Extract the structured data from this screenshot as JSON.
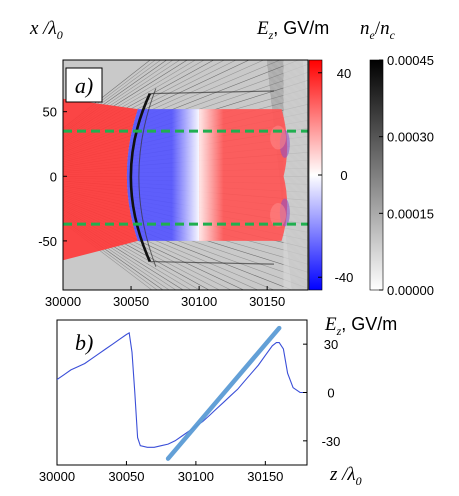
{
  "chart_data": [
    {
      "panel": "a)",
      "type": "heatmap",
      "ylabel_main": "x /λ",
      "ylabel_sub": "0",
      "x_ticks": [
        30000,
        30050,
        30100,
        30150
      ],
      "y_ticks": [
        50,
        0,
        -50
      ],
      "xlim": [
        30000,
        30180
      ],
      "ylim": [
        -88,
        90
      ],
      "field_colorbar": {
        "label_main": "E",
        "label_sub": "z",
        "label_unit": ", GV/m",
        "ticks": [
          "40",
          "0",
          "-40"
        ],
        "range": [
          -45,
          45
        ],
        "colors": [
          "#0000ff",
          "#ffffff",
          "#ff0000"
        ]
      },
      "density_colorbar": {
        "label_num": "n",
        "label_num_sub": "e",
        "label_den": "n",
        "label_den_sub": "c",
        "ticks": [
          "0.00045",
          "0.00030",
          "0.00015",
          "0.00000"
        ],
        "range": [
          0,
          0.00045
        ],
        "colors": [
          "#ffffff",
          "#000000"
        ]
      },
      "field_regions": [
        {
          "z_start": 30000,
          "z_end": 30055,
          "value": 35
        },
        {
          "z_start": 30055,
          "z_end": 30100,
          "value": -30
        },
        {
          "z_start": 30100,
          "z_end": 30165,
          "value": 30
        }
      ],
      "dashed_lines_x": [
        35,
        -37
      ],
      "dashed_color": "#1faf4f"
    },
    {
      "panel": "b)",
      "type": "line",
      "xlabel_main": "z /λ",
      "xlabel_sub": "0",
      "ylabel_main": "E",
      "ylabel_sub": "z",
      "ylabel_unit": ", GV/m",
      "x_ticks": [
        30000,
        30050,
        30100,
        30150
      ],
      "y_ticks": [
        30,
        0,
        -30
      ],
      "xlim": [
        30000,
        30180
      ],
      "ylim": [
        -45,
        45
      ],
      "series": [
        {
          "color": "#3b4fd8",
          "x": [
            30000,
            30005,
            30010,
            30015,
            30020,
            30025,
            30030,
            30035,
            30040,
            30045,
            30050,
            30052,
            30054,
            30056,
            30058,
            30060,
            30065,
            30070,
            30075,
            30080,
            30085,
            30090,
            30095,
            30100,
            30105,
            30110,
            30115,
            30120,
            30125,
            30130,
            30135,
            30140,
            30145,
            30150,
            30155,
            30158,
            30160,
            30163,
            30166,
            30170,
            30175,
            30180
          ],
          "y": [
            8,
            11,
            14,
            16,
            18,
            21,
            24,
            27,
            30,
            33,
            36,
            37,
            25,
            0,
            -28,
            -33,
            -34,
            -34,
            -33,
            -32,
            -30,
            -27,
            -24,
            -21,
            -18,
            -14,
            -10,
            -6,
            -2,
            2,
            7,
            12,
            17,
            23,
            29,
            31,
            31,
            27,
            12,
            3,
            0,
            0
          ]
        },
        {
          "color": "#5b9bd5",
          "x": [
            30080,
            30160
          ],
          "y": [
            -41,
            40
          ]
        }
      ]
    }
  ]
}
